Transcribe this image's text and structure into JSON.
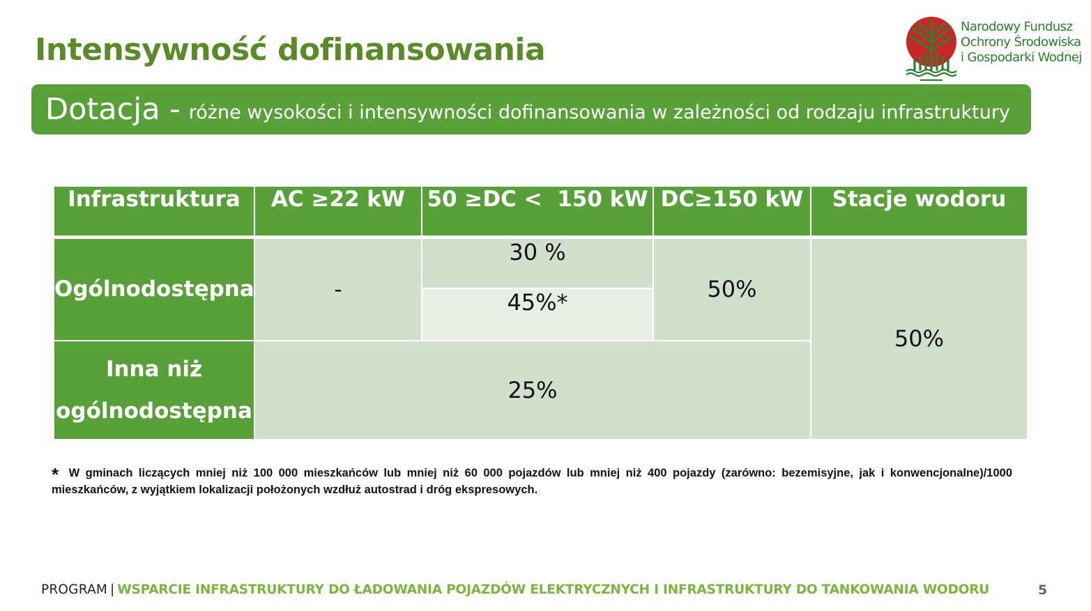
{
  "slide": {
    "title": "Intensywność dofinansowania",
    "page_number": "5"
  },
  "logo": {
    "line1": "Narodowy Fundusz",
    "line2": "Ochrony Środowiska",
    "line3": "i Gospodarki Wodnej",
    "icon": "nfosigw-logo",
    "colors": {
      "circle": "#c62828",
      "tree": "#2e7d32"
    }
  },
  "banner": {
    "main": "Dotacja -",
    "sub": "różne wysokości i intensywności dofinansowania w zależności od rodzaju infrastruktury"
  },
  "table": {
    "headers": [
      "Infrastruktura",
      "AC ≥22 kW",
      "50 ≥DC <  150 kW",
      "DC≥150 kW",
      "Stacje wodoru"
    ],
    "row1_label": "Ogólnodostępna",
    "row1_ac": "-",
    "row1_dc_mid_a": "30 %",
    "row1_dc_mid_b": "45%*",
    "row1_dc_high": "50%",
    "hydrogen": "50%",
    "row2_label_line1": "Inna niż",
    "row2_label_line2": "ogólnodostępna",
    "row2_value": "25%"
  },
  "footnote": {
    "star": "*",
    "text": "W gminach liczących mniej niż 100 000 mieszkańców lub mniej niż 60 000 pojazdów lub mniej niż 400 pojazdy (zarówno: bezemisyjne, jak i konwencjonalne)/1000 mieszkańców, z wyjątkiem lokalizacji położonych wzdłuż autostrad i dróg ekspresowych."
  },
  "footer": {
    "program": "PROGRAM",
    "separator": "|",
    "name": "WSPARCIE INFRASTRUKTURY DO ŁADOWANIA POJAZDÓW ELEKTRYCZNYCH I INFRASTRUKTURY DO TANKOWANIA WODORU"
  },
  "colors": {
    "title_green": "#5c8a2a",
    "banner_green": "#5aa03a",
    "cell_green": "#d1e0cc",
    "cell_light": "#e8eee4",
    "footer_green": "#7cb342"
  }
}
